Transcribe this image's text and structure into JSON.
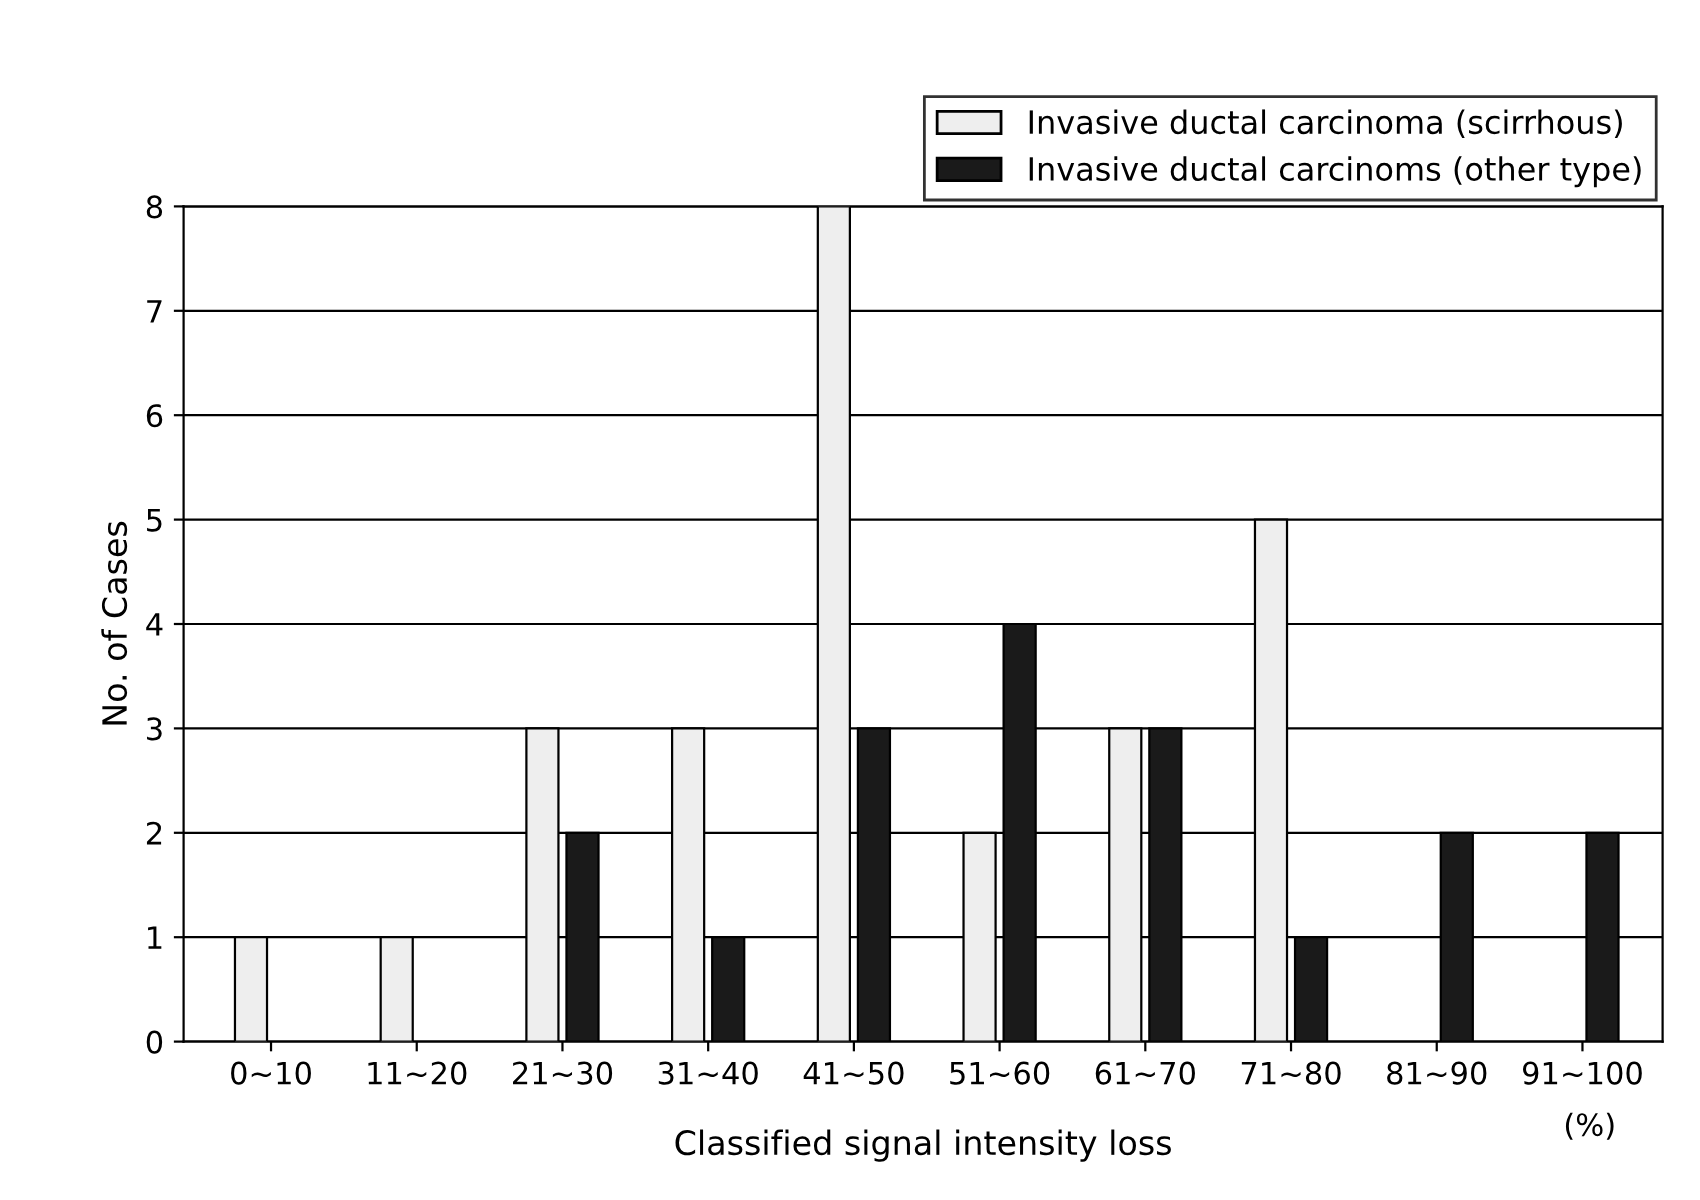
{
  "chart_data": {
    "type": "bar",
    "xlabel": "Classified signal intensity loss",
    "ylabel": "No. of Cases",
    "categories": [
      "0∼10",
      "11∼20",
      "21∼30",
      "31∼40",
      "41∼50",
      "51∼60",
      "61∼70",
      "71∼80",
      "81∼90",
      "91∼100"
    ],
    "series": [
      {
        "name": "Invasive ductal carcinoma (scirrhous)",
        "color": "#eeeeee",
        "values": [
          1,
          1,
          3,
          3,
          8,
          2,
          3,
          5,
          null,
          null
        ]
      },
      {
        "name": "Invasive ductal carcinoms (other type)",
        "color": "#1a1a1a",
        "values": [
          null,
          null,
          2,
          1,
          3,
          4,
          3,
          1,
          2,
          2
        ]
      }
    ],
    "ylim": [
      0,
      8
    ],
    "yticks": [
      0,
      1,
      2,
      3,
      4,
      5,
      6,
      7,
      8
    ],
    "grid": "y",
    "legend": "top right",
    "annotations": [
      "(%)"
    ]
  }
}
